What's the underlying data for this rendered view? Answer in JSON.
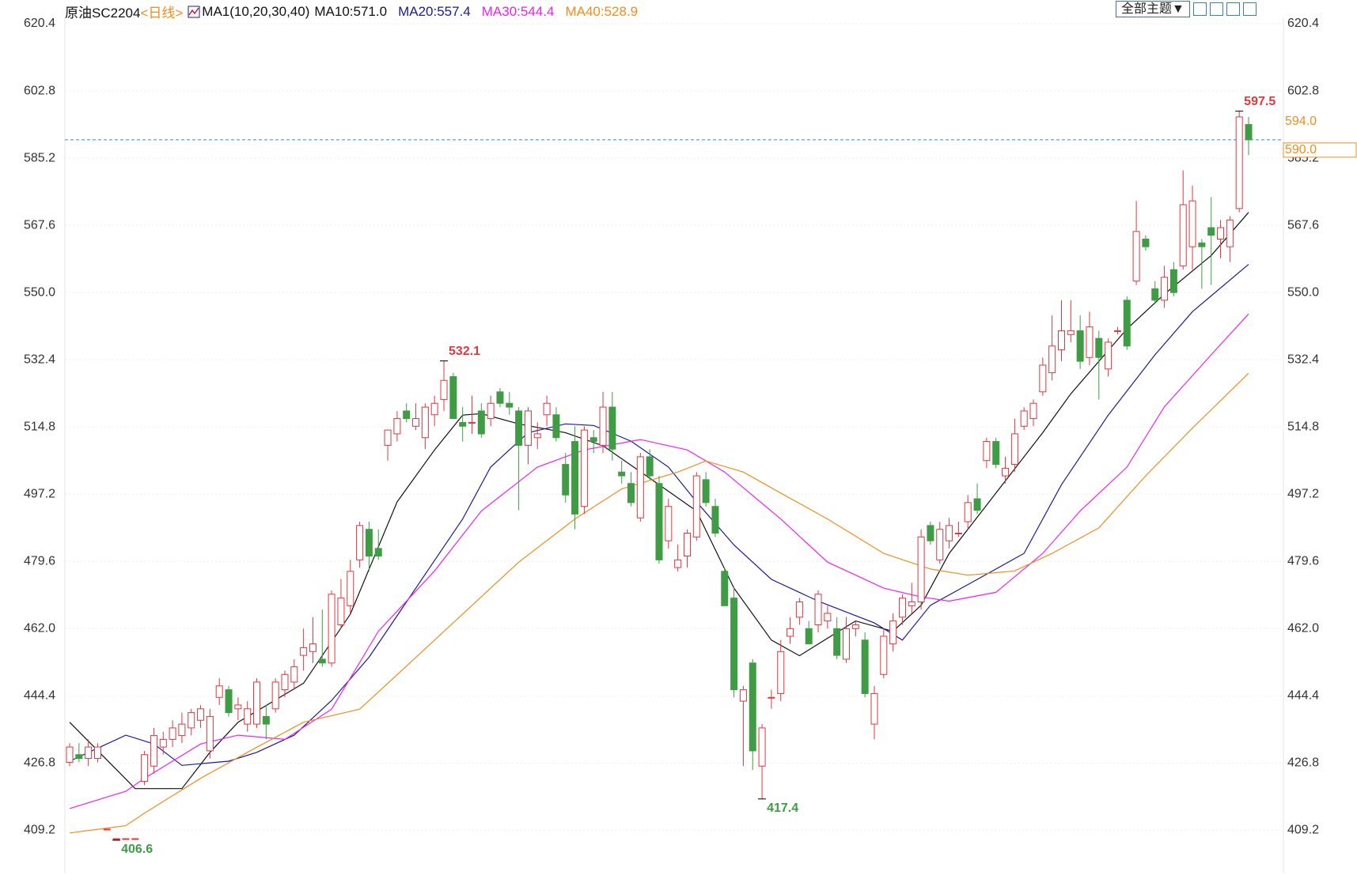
{
  "chart_data": {
    "type": "candlestick",
    "title": "原油SC2204",
    "period": "<日线>",
    "indicator": "MA1(10,20,30,40)",
    "theme_button": "全部主题▼",
    "open": [
      427,
      429,
      428,
      428,
      409.5,
      407,
      407,
      407,
      422,
      426,
      431,
      433,
      434,
      436,
      438,
      430,
      444,
      446,
      441,
      437,
      437,
      439,
      441,
      446,
      448,
      455,
      456,
      454,
      453,
      463,
      468,
      480,
      488,
      483,
      510,
      513,
      519,
      515,
      512,
      518,
      522,
      528,
      516,
      516,
      519,
      517,
      524,
      521,
      519,
      510,
      512,
      518,
      518,
      505,
      511,
      494,
      512,
      510,
      520,
      503,
      500,
      491,
      507,
      500,
      485,
      478,
      481,
      486,
      501,
      494,
      477,
      470,
      443,
      453,
      426,
      444,
      445,
      460,
      465,
      462,
      463,
      464,
      462,
      454,
      462,
      459,
      437,
      450,
      458,
      465,
      468,
      469,
      489,
      480,
      485,
      487,
      490,
      496,
      506,
      511,
      502,
      505,
      515,
      517,
      524,
      529,
      535,
      539,
      540,
      533,
      538,
      530,
      540,
      548,
      553,
      564,
      551,
      548,
      556,
      557,
      562,
      563,
      567,
      564,
      562,
      572,
      594
    ],
    "high": [
      432,
      432,
      433,
      432,
      409.5,
      407,
      407,
      407,
      430,
      436,
      435,
      438,
      440,
      441,
      442,
      441,
      449,
      447,
      444,
      443,
      449,
      442,
      449,
      451,
      454,
      462,
      465,
      467,
      472,
      475,
      480,
      490,
      490,
      488,
      514,
      519,
      521,
      521,
      521,
      523,
      532.1,
      529,
      520,
      523,
      521,
      523,
      525,
      524,
      520,
      520,
      516,
      523,
      520,
      508,
      515,
      515,
      514,
      524,
      524,
      506,
      503,
      508,
      509,
      502,
      496,
      484,
      488,
      503,
      503,
      496,
      478,
      473,
      447,
      454,
      437,
      446,
      459,
      465,
      470,
      464,
      472,
      468,
      465,
      465,
      464,
      461,
      447,
      462,
      466,
      471,
      474,
      488,
      490,
      490,
      491,
      490,
      497,
      500,
      512,
      512,
      507,
      517,
      520,
      522,
      533,
      544,
      548,
      548,
      544,
      545,
      540,
      538,
      541,
      549,
      574,
      565,
      553,
      557,
      558,
      582,
      578,
      564,
      575,
      569,
      570,
      597.5,
      596
    ],
    "low": [
      426,
      427,
      426,
      427,
      409.5,
      406.6,
      407,
      407,
      421,
      424,
      429,
      431,
      432,
      434,
      436,
      428,
      442,
      439,
      438,
      435,
      436,
      433,
      440,
      444,
      446,
      451,
      453,
      452,
      452,
      462,
      466,
      478,
      477,
      480,
      506,
      511,
      516,
      514,
      509,
      515,
      519,
      517,
      511,
      513,
      512,
      515,
      520,
      518,
      493,
      505,
      509,
      515,
      511,
      495,
      488,
      492,
      508,
      508,
      506,
      500,
      494,
      490,
      501,
      479,
      483,
      477,
      478,
      485,
      494,
      486,
      468,
      444,
      426,
      425,
      417.4,
      441,
      443,
      458,
      463,
      458,
      461,
      462,
      454,
      453,
      460,
      444,
      433,
      449,
      456,
      463,
      466,
      467,
      484,
      479,
      483,
      486,
      488,
      492,
      504,
      504,
      500,
      503,
      514,
      515,
      523,
      527,
      532,
      537,
      530,
      531,
      522,
      528,
      539,
      535,
      552,
      561,
      547,
      546,
      549,
      556,
      556,
      551,
      552,
      559,
      558,
      571,
      586
    ],
    "close": [
      431,
      428,
      431,
      431,
      409.5,
      407,
      407,
      407,
      429,
      434,
      433,
      436,
      437,
      440,
      441,
      439,
      447,
      440,
      442,
      441,
      448,
      437,
      448,
      450,
      452,
      457,
      458,
      453,
      471,
      470,
      477,
      489,
      481,
      481,
      514,
      517,
      517,
      517,
      520,
      521,
      527,
      517,
      515,
      516,
      513,
      521,
      521,
      520,
      510,
      519,
      513,
      521,
      512,
      497,
      492,
      514,
      511,
      520,
      509,
      502,
      495,
      507,
      502,
      480,
      494,
      480,
      487,
      502,
      495,
      487,
      468,
      446,
      446,
      430,
      436,
      444,
      456,
      462,
      469,
      458,
      471,
      466,
      455,
      462,
      463,
      445,
      445,
      460,
      464,
      470,
      469,
      486,
      485,
      488,
      489,
      487,
      495,
      493,
      511,
      505,
      504,
      513,
      519,
      521,
      531,
      536,
      540,
      540,
      532,
      541,
      533,
      537,
      540,
      536,
      566,
      562,
      548,
      554,
      550,
      573,
      574,
      562,
      565,
      567,
      569,
      596,
      590
    ],
    "up_color": "#e0383e",
    "down_color": "#3f9c45",
    "ma": [
      {
        "name": "MA10:571.0",
        "color": "#111111",
        "x": [
          0,
          5,
          7,
          12,
          15,
          18,
          25,
          30,
          35,
          39,
          42,
          44,
          48,
          53,
          57,
          63,
          67,
          71,
          75,
          78,
          81,
          84,
          88,
          91,
          94,
          99,
          104,
          107,
          113,
          117,
          122,
          126
        ],
        "values": [
          437.5,
          425.1,
          420.1,
          420.1,
          429.6,
          437.5,
          447.7,
          465.8,
          495.2,
          508.8,
          517.9,
          518.3,
          515.6,
          513.3,
          509.9,
          499.7,
          492.8,
          472.6,
          459.0,
          454.9,
          459.5,
          464.0,
          461.3,
          468.1,
          481.7,
          497.5,
          513.3,
          523.5,
          540.5,
          549.6,
          559.7,
          571.0
        ]
      },
      {
        "name": "MA20:557.4",
        "color": "#1a1a9c",
        "x": [
          0,
          6,
          9,
          12,
          17,
          20,
          24,
          28,
          32,
          37,
          42,
          45,
          49,
          53,
          56,
          60,
          64,
          67,
          71,
          75,
          80,
          86,
          89,
          92,
          97,
          102,
          106,
          111,
          116,
          120,
          126
        ],
        "values": [
          427.3,
          434.1,
          431.8,
          426.2,
          427.3,
          429.6,
          434.1,
          443.2,
          454.5,
          472.6,
          490.7,
          504.3,
          513.3,
          515.6,
          515.2,
          511.1,
          504.3,
          495.2,
          483.9,
          474.9,
          469.2,
          463.5,
          459.0,
          468.1,
          474.9,
          481.7,
          499.7,
          517.9,
          533.7,
          545.0,
          557.4
        ]
      },
      {
        "name": "MA30:544.4",
        "color": "#ee22ee",
        "x": [
          0,
          6,
          8,
          14,
          18,
          23,
          28,
          33,
          39,
          44,
          50,
          55,
          61,
          66,
          70,
          76,
          81,
          87,
          91,
          94,
          99,
          104,
          108,
          113,
          117,
          122,
          126
        ],
        "values": [
          414.9,
          419.4,
          422.8,
          431.8,
          434.1,
          433.0,
          440.9,
          461.3,
          477.1,
          492.8,
          504.3,
          508.8,
          511.5,
          508.8,
          503.0,
          490.7,
          479.4,
          472.6,
          470.3,
          469.2,
          471.5,
          481.7,
          492.8,
          504.3,
          520.1,
          533.7,
          544.4
        ]
      },
      {
        "name": "MA40:528.9",
        "color": "#f28c1c",
        "x": [
          0,
          6,
          8,
          14,
          19,
          25,
          31,
          36,
          42,
          48,
          54,
          59,
          65,
          68,
          72,
          76,
          81,
          87,
          92,
          96,
          101,
          105,
          110,
          115,
          120,
          126
        ],
        "values": [
          408.5,
          410.4,
          413.7,
          422.8,
          429.6,
          437.5,
          440.9,
          452.2,
          465.8,
          479.4,
          490.7,
          498.6,
          503.0,
          505.9,
          503.0,
          497.5,
          490.7,
          481.7,
          477.6,
          476.0,
          477.1,
          481.7,
          488.4,
          502.0,
          514.5,
          528.9
        ]
      }
    ],
    "ylim": [
      397.9,
      620.4
    ],
    "yticks": [
      620.4,
      602.8,
      585.2,
      567.6,
      {
        "value": 550,
        "label": "550.0"
      },
      532.4,
      514.8,
      497.2,
      479.6,
      {
        "value": 462,
        "label": "462.0"
      },
      444.4,
      426.8,
      409.2
    ],
    "grid": true,
    "max_labels": [
      597.5,
      532.1
    ],
    "min_labels": [
      417.4,
      406.6
    ],
    "price_line": {
      "value": 590,
      "label": "590.0",
      "color": "#2f8fd0"
    },
    "last_label": {
      "value": 594,
      "label": "594.0"
    }
  }
}
